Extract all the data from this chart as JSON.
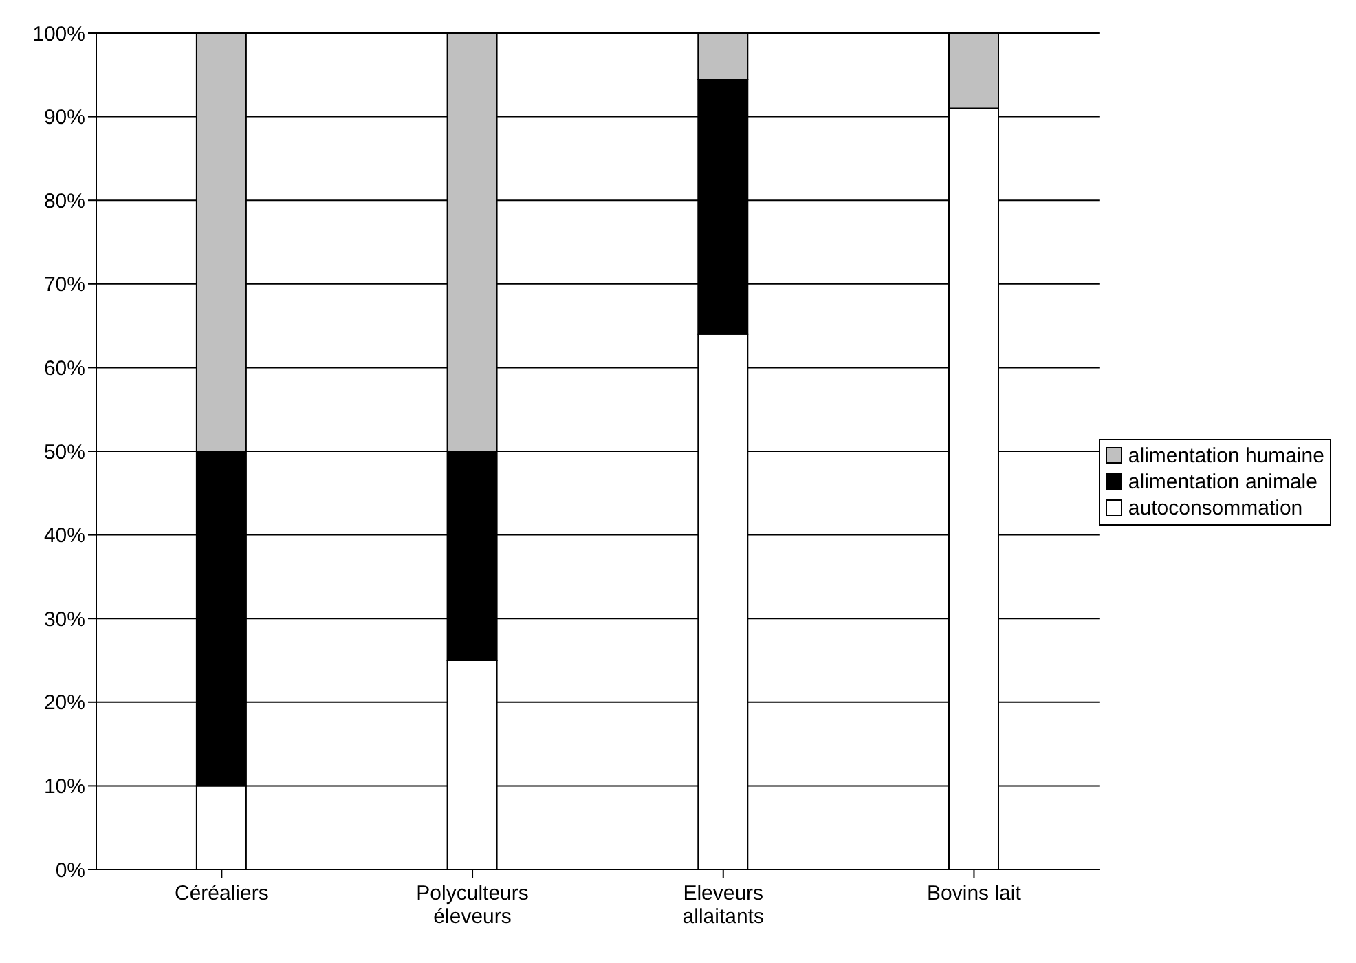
{
  "chart_data": {
    "type": "bar",
    "stacked": true,
    "categories": [
      "Céréaliers",
      "Polyculteurs éleveurs",
      "Eleveurs allaitants",
      "Bovins lait"
    ],
    "series": [
      {
        "name": "autoconsommation",
        "color": "#ffffff",
        "values": [
          10,
          25,
          64,
          91
        ]
      },
      {
        "name": "alimentation animale",
        "color": "#000000",
        "values": [
          40,
          25,
          30.4,
          0
        ]
      },
      {
        "name": "alimentation humaine",
        "color": "#c0c0c0",
        "values": [
          50,
          50,
          5.6,
          9
        ]
      }
    ],
    "ylim": [
      0,
      100
    ],
    "yticks": [
      {
        "value": 0,
        "label": "0%"
      },
      {
        "value": 10,
        "label": "10%"
      },
      {
        "value": 20,
        "label": "20%"
      },
      {
        "value": 30,
        "label": "30%"
      },
      {
        "value": 40,
        "label": "40%"
      },
      {
        "value": 50,
        "label": "50%"
      },
      {
        "value": 60,
        "label": "60%"
      },
      {
        "value": 70,
        "label": "70%"
      },
      {
        "value": 80,
        "label": "80%"
      },
      {
        "value": 90,
        "label": "90%"
      },
      {
        "value": 100,
        "label": "100%"
      }
    ],
    "grid": "y",
    "legend": "right"
  }
}
